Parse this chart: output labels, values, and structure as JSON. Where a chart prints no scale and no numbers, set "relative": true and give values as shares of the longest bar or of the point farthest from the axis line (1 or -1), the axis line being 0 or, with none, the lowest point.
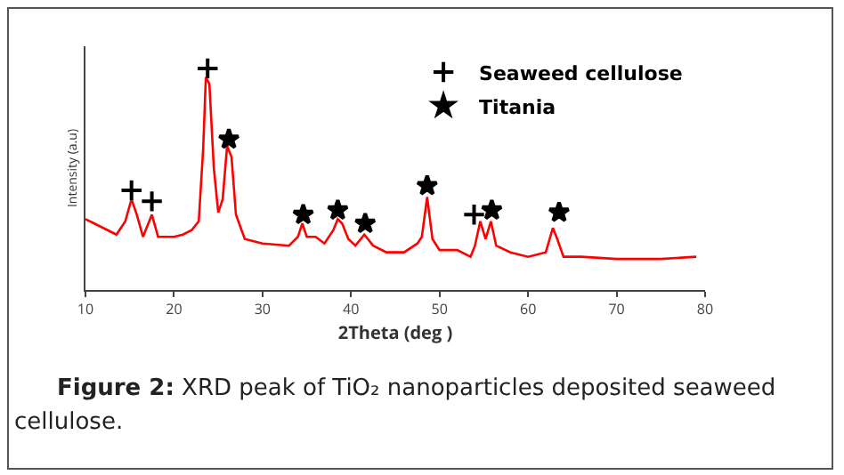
{
  "chart_data": {
    "type": "line",
    "xlabel": "2Theta (deg )",
    "ylabel": "Intensity (a.u)",
    "relative": true,
    "xlim": [
      10,
      80
    ],
    "xticks": [
      10,
      20,
      30,
      40,
      50,
      60,
      70,
      80
    ],
    "grid": false,
    "legend": "top right",
    "annotations": [
      "Figure 2: XRD peak of TiO₂ nanoparticles deposited seaweed cellulose."
    ],
    "series": [
      {
        "color": "#ff0000",
        "marker": "none",
        "x": [
          10,
          11,
          12.5,
          13.5,
          14.5,
          15.2,
          15.8,
          16.5,
          17.5,
          18.2,
          20,
          21,
          22,
          22.8,
          23.3,
          23.6,
          24,
          24.5,
          25,
          25.5,
          26,
          26.5,
          27,
          28,
          30,
          33,
          34,
          34.5,
          35,
          36,
          37,
          38,
          38.5,
          39,
          39.7,
          40.5,
          41.5,
          42.5,
          44,
          46,
          47.5,
          48,
          48.6,
          49.2,
          50,
          52,
          53.5,
          54,
          54.6,
          55.2,
          55.8,
          56.4,
          58,
          60,
          62,
          62.8,
          63.3,
          64,
          66,
          70,
          75,
          79
        ],
        "values": [
          0.32,
          0.3,
          0.27,
          0.25,
          0.31,
          0.41,
          0.34,
          0.24,
          0.34,
          0.24,
          0.24,
          0.25,
          0.27,
          0.31,
          0.64,
          0.96,
          0.93,
          0.55,
          0.35,
          0.41,
          0.65,
          0.6,
          0.34,
          0.23,
          0.21,
          0.2,
          0.24,
          0.3,
          0.24,
          0.24,
          0.21,
          0.27,
          0.32,
          0.3,
          0.23,
          0.2,
          0.25,
          0.2,
          0.17,
          0.17,
          0.21,
          0.24,
          0.42,
          0.23,
          0.18,
          0.18,
          0.15,
          0.2,
          0.31,
          0.23,
          0.31,
          0.2,
          0.17,
          0.15,
          0.17,
          0.28,
          0.23,
          0.15,
          0.15,
          0.14,
          0.14,
          0.15
        ]
      },
      {
        "type": "scatter",
        "name": "Seaweed cellulose",
        "color": "#000000",
        "marker": "cross",
        "x": [
          15.2,
          17.5,
          23.8,
          53.9
        ],
        "values": [
          0.45,
          0.4,
          1.0,
          0.34
        ]
      },
      {
        "type": "scatter",
        "name": "Titania",
        "color": "#000000",
        "marker": "star",
        "x": [
          26.2,
          34.6,
          38.5,
          41.6,
          48.6,
          55.9,
          63.5
        ],
        "values": [
          0.68,
          0.34,
          0.36,
          0.3,
          0.47,
          0.36,
          0.35
        ]
      }
    ]
  }
}
